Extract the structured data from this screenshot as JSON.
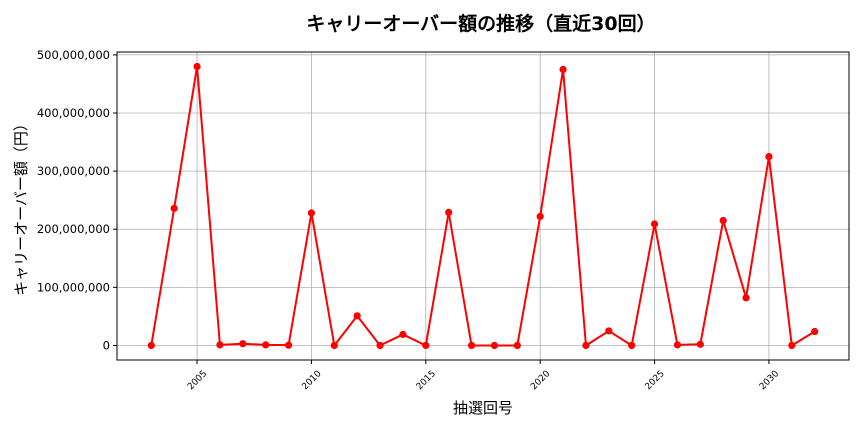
{
  "chart_data": {
    "type": "line",
    "title": "キャリーオーバー額の推移（直近30回）",
    "xlabel": "抽選回号",
    "ylabel": "キャリーオーバー額（円）",
    "x": [
      2003,
      2004,
      2005,
      2006,
      2007,
      2008,
      2009,
      2010,
      2011,
      2012,
      2013,
      2014,
      2015,
      2016,
      2017,
      2018,
      2019,
      2020,
      2021,
      2022,
      2023,
      2024,
      2025,
      2026,
      2027,
      2028,
      2029,
      2030,
      2031,
      2032
    ],
    "series": [
      {
        "values": [
          0,
          236000000,
          480000000,
          1000000,
          3000000,
          1000000,
          500000,
          228000000,
          0,
          51000000,
          0,
          19000000,
          0,
          229000000,
          0,
          0,
          0,
          222000000,
          475000000,
          0,
          25000000,
          0,
          209000000,
          1000000,
          2000000,
          215000000,
          82000000,
          325000000,
          0,
          24000000
        ],
        "color": "#ff0000"
      }
    ],
    "xlim": [
      2001.5,
      2033.5
    ],
    "ylim": [
      -25000000,
      505000000
    ],
    "xticks": [
      2005,
      2010,
      2015,
      2020,
      2025,
      2030
    ],
    "xtick_labels": [
      "2005",
      "2010",
      "2015",
      "2020",
      "2025",
      "2030"
    ],
    "yticks": [
      0,
      100000000,
      200000000,
      300000000,
      400000000,
      500000000
    ],
    "ytick_labels": [
      "0",
      "100,000,000",
      "200,000,000",
      "300,000,000",
      "400,000,000",
      "500,000,000"
    ],
    "grid": true,
    "marker": "circle"
  }
}
